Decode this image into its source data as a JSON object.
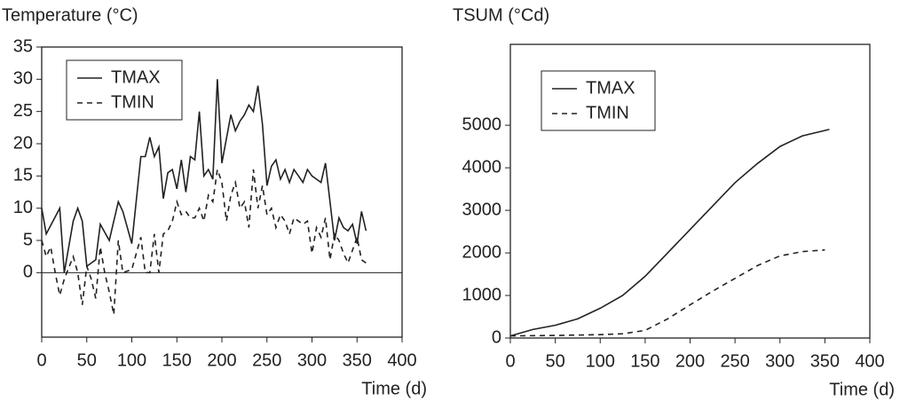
{
  "chart_data": [
    {
      "type": "line",
      "title": "Temperature (°C)",
      "x_label": "Time (d)",
      "xlim": [
        0,
        400
      ],
      "xticks": [
        0,
        50,
        100,
        150,
        200,
        250,
        300,
        350,
        400
      ],
      "ylim": [
        -10,
        35
      ],
      "yticks": [
        0,
        5,
        10,
        15,
        20,
        25,
        30,
        35
      ],
      "zero_line": true,
      "legend": "upper left",
      "series": [
        {
          "name": "TMAX",
          "color": "#222222",
          "dash": "solid",
          "x": [
            0,
            5,
            20,
            25,
            35,
            40,
            45,
            50,
            60,
            65,
            75,
            85,
            90,
            100,
            110,
            115,
            120,
            125,
            130,
            135,
            140,
            145,
            150,
            155,
            160,
            165,
            170,
            175,
            180,
            185,
            190,
            195,
            200,
            210,
            215,
            220,
            225,
            230,
            235,
            240,
            245,
            250,
            255,
            260,
            265,
            270,
            275,
            280,
            285,
            290,
            295,
            300,
            305,
            310,
            315,
            320,
            325,
            330,
            335,
            340,
            345,
            350,
            355,
            360
          ],
          "values": [
            10,
            6,
            10,
            0,
            8,
            10,
            8,
            1,
            2,
            7.5,
            5,
            11,
            9.5,
            4.5,
            18,
            18,
            21,
            18,
            19.5,
            11.5,
            15.5,
            16,
            13,
            17.5,
            12.5,
            18,
            17.5,
            25,
            15,
            16,
            14.5,
            30,
            17,
            24.5,
            22,
            23.5,
            24.5,
            26,
            25,
            29,
            23,
            13.5,
            16.5,
            17.5,
            14.5,
            16,
            14,
            16,
            15,
            14,
            16,
            15,
            14.5,
            14,
            17,
            11,
            5,
            8.5,
            7,
            6.5,
            7.5,
            4.5,
            9.5,
            6.5
          ]
        },
        {
          "name": "TMIN",
          "color": "#222222",
          "dash": "dashed",
          "x": [
            0,
            5,
            10,
            15,
            20,
            25,
            35,
            40,
            45,
            50,
            55,
            60,
            65,
            70,
            75,
            80,
            85,
            90,
            100,
            105,
            110,
            115,
            120,
            125,
            130,
            135,
            140,
            145,
            150,
            155,
            160,
            165,
            170,
            175,
            180,
            185,
            190,
            195,
            200,
            205,
            210,
            215,
            220,
            225,
            230,
            235,
            240,
            245,
            250,
            255,
            260,
            265,
            270,
            275,
            280,
            285,
            290,
            295,
            300,
            305,
            310,
            315,
            320,
            325,
            330,
            335,
            340,
            345,
            350,
            355,
            360
          ],
          "values": [
            5,
            2.5,
            4,
            0,
            -3.5,
            -1,
            2.5,
            0,
            -5,
            1,
            -1,
            -4,
            4,
            0,
            -3,
            -6.5,
            5,
            0,
            0.5,
            3,
            5.5,
            0,
            0,
            6,
            0,
            6,
            6.5,
            8,
            11,
            9,
            9.5,
            8.5,
            8.5,
            10,
            8,
            12,
            11,
            16,
            14,
            8,
            12,
            14,
            10,
            11,
            7,
            16,
            10,
            13.5,
            9,
            10,
            7,
            9,
            8,
            6,
            8.5,
            8,
            7.5,
            8,
            3,
            7,
            5.5,
            8.5,
            2,
            6,
            5,
            3,
            1.5,
            3.5,
            5.5,
            2,
            1.5
          ]
        }
      ]
    },
    {
      "type": "line",
      "title": "TSUM (°Cd)",
      "x_label": "Time (d)",
      "xlim": [
        0,
        400
      ],
      "xticks": [
        0,
        50,
        100,
        150,
        200,
        250,
        300,
        350,
        400
      ],
      "ylim": [
        0,
        6900
      ],
      "yticks": [
        0,
        1000,
        2000,
        3000,
        4000,
        5000
      ],
      "zero_line": false,
      "legend": "upper left",
      "series": [
        {
          "name": "TMAX",
          "color": "#222222",
          "dash": "solid",
          "x": [
            0,
            25,
            50,
            75,
            100,
            125,
            150,
            175,
            200,
            225,
            250,
            275,
            300,
            325,
            355
          ],
          "values": [
            50,
            200,
            300,
            450,
            700,
            1000,
            1450,
            2000,
            2550,
            3100,
            3650,
            4100,
            4500,
            4750,
            4900
          ]
        },
        {
          "name": "TMIN",
          "color": "#222222",
          "dash": "dashed",
          "x": [
            0,
            50,
            100,
            125,
            150,
            175,
            200,
            225,
            250,
            275,
            300,
            325,
            350
          ],
          "values": [
            50,
            60,
            80,
            100,
            180,
            450,
            780,
            1100,
            1400,
            1700,
            1930,
            2030,
            2070
          ]
        }
      ]
    }
  ]
}
